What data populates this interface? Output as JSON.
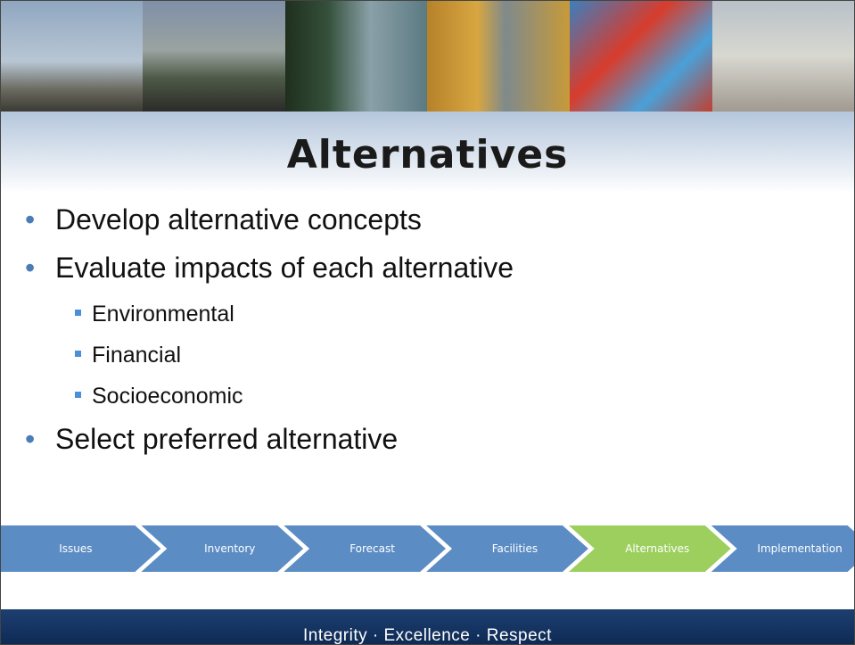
{
  "header": {
    "title": "Alternatives"
  },
  "bullets": [
    {
      "text": "Develop alternative concepts"
    },
    {
      "text": "Evaluate impacts of each alternative",
      "subitems": [
        "Environmental",
        "Financial",
        "Socioeconomic"
      ]
    },
    {
      "text": "Select preferred alternative"
    }
  ],
  "process": [
    {
      "label": "Issues",
      "color": "#5b8cc4"
    },
    {
      "label": "Inventory",
      "color": "#5b8cc4"
    },
    {
      "label": "Forecast",
      "color": "#5b8cc4"
    },
    {
      "label": "Facilities",
      "color": "#5b8cc4"
    },
    {
      "label": "Alternatives",
      "color": "#9ccf5e"
    },
    {
      "label": "Implementation",
      "color": "#5b8cc4"
    }
  ],
  "footer": {
    "text": "Integrity · Excellence · Respect"
  }
}
